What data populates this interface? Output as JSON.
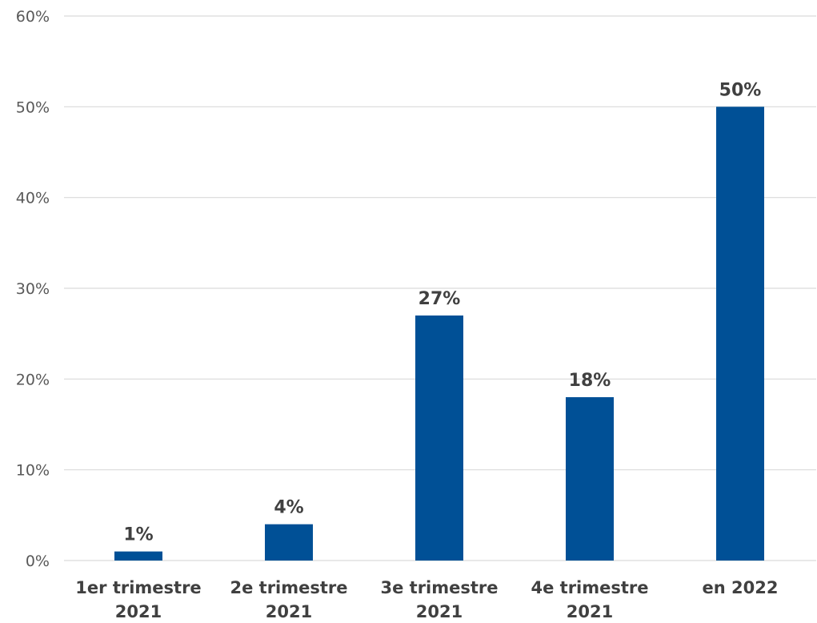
{
  "chart_data": {
    "type": "bar",
    "title": "",
    "xlabel": "",
    "ylabel": "",
    "categories": [
      [
        "1er trimestre",
        "2021"
      ],
      [
        "2e trimestre",
        "2021"
      ],
      [
        "3e trimestre",
        "2021"
      ],
      [
        "4e trimestre",
        "2021"
      ],
      [
        "en 2022"
      ]
    ],
    "values": [
      1,
      4,
      27,
      18,
      50
    ],
    "data_labels": [
      "1%",
      "4%",
      "27%",
      "18%",
      "50%"
    ],
    "ylim": [
      0,
      60
    ],
    "yticks": [
      0,
      10,
      20,
      30,
      40,
      50,
      60
    ],
    "ytick_labels": [
      "0%",
      "10%",
      "20%",
      "30%",
      "40%",
      "50%",
      "60%"
    ],
    "grid": true,
    "legend": "none",
    "colors": {
      "bar": "#005096",
      "grid": "#d9d9d9",
      "tick_text": "#595959",
      "label_text": "#404040"
    }
  }
}
